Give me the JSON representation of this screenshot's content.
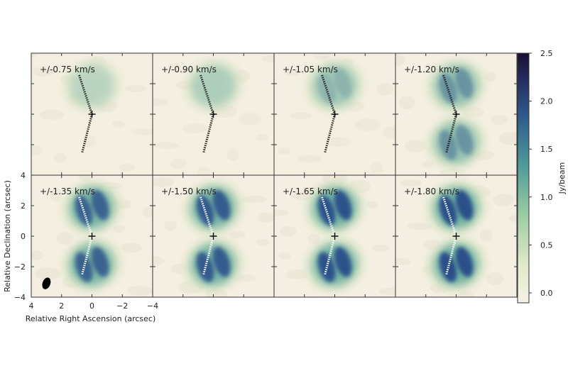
{
  "chart_data": {
    "type": "heatmap",
    "panels": [
      {
        "label": "+/-0.75 km/s",
        "intensity": 0.1,
        "upper_lobe": true,
        "lower_lobe": false
      },
      {
        "label": "+/-0.90 km/s",
        "intensity": 0.25,
        "upper_lobe": true,
        "lower_lobe": false
      },
      {
        "label": "+/-1.05 km/s",
        "intensity": 0.4,
        "upper_lobe": true,
        "lower_lobe": false
      },
      {
        "label": "+/-1.20 km/s",
        "intensity": 0.55,
        "upper_lobe": true,
        "lower_lobe": true
      },
      {
        "label": "+/-1.35 km/s",
        "intensity": 0.8,
        "upper_lobe": true,
        "lower_lobe": true
      },
      {
        "label": "+/-1.50 km/s",
        "intensity": 0.85,
        "upper_lobe": true,
        "lower_lobe": true
      },
      {
        "label": "+/-1.65 km/s",
        "intensity": 0.9,
        "upper_lobe": true,
        "lower_lobe": true
      },
      {
        "label": "+/-1.80 km/s",
        "intensity": 0.92,
        "upper_lobe": true,
        "lower_lobe": true
      }
    ],
    "xlabel": "Relative Right Ascension (arcsec)",
    "ylabel": "Relative Declination (arcsec)",
    "xlim": [
      4,
      -4
    ],
    "ylim": [
      -4,
      4
    ],
    "xticks": [
      "4",
      "2",
      "0",
      "−2",
      "−4"
    ],
    "yticks": [
      "4",
      "2",
      "0",
      "−2",
      "−4"
    ],
    "xtick_values": [
      4,
      2,
      0,
      -2,
      -4
    ],
    "ytick_values": [
      4,
      2,
      0,
      -2,
      -4
    ],
    "colorbar": {
      "label": "Jy/beam",
      "range": [
        0,
        2.5
      ],
      "ticks": [
        "0.0",
        "0.5",
        "1.0",
        "1.5",
        "2.0",
        "2.5"
      ],
      "tick_values": [
        0,
        0.5,
        1.0,
        1.5,
        2.0,
        2.5
      ]
    },
    "grid": false,
    "beam_panel": 4,
    "colors": {
      "background": "#f5efe3",
      "low": "#dfe8c8",
      "mid": "#5aa69a",
      "high": "#2c4f8a",
      "max": "#1b1537"
    }
  }
}
